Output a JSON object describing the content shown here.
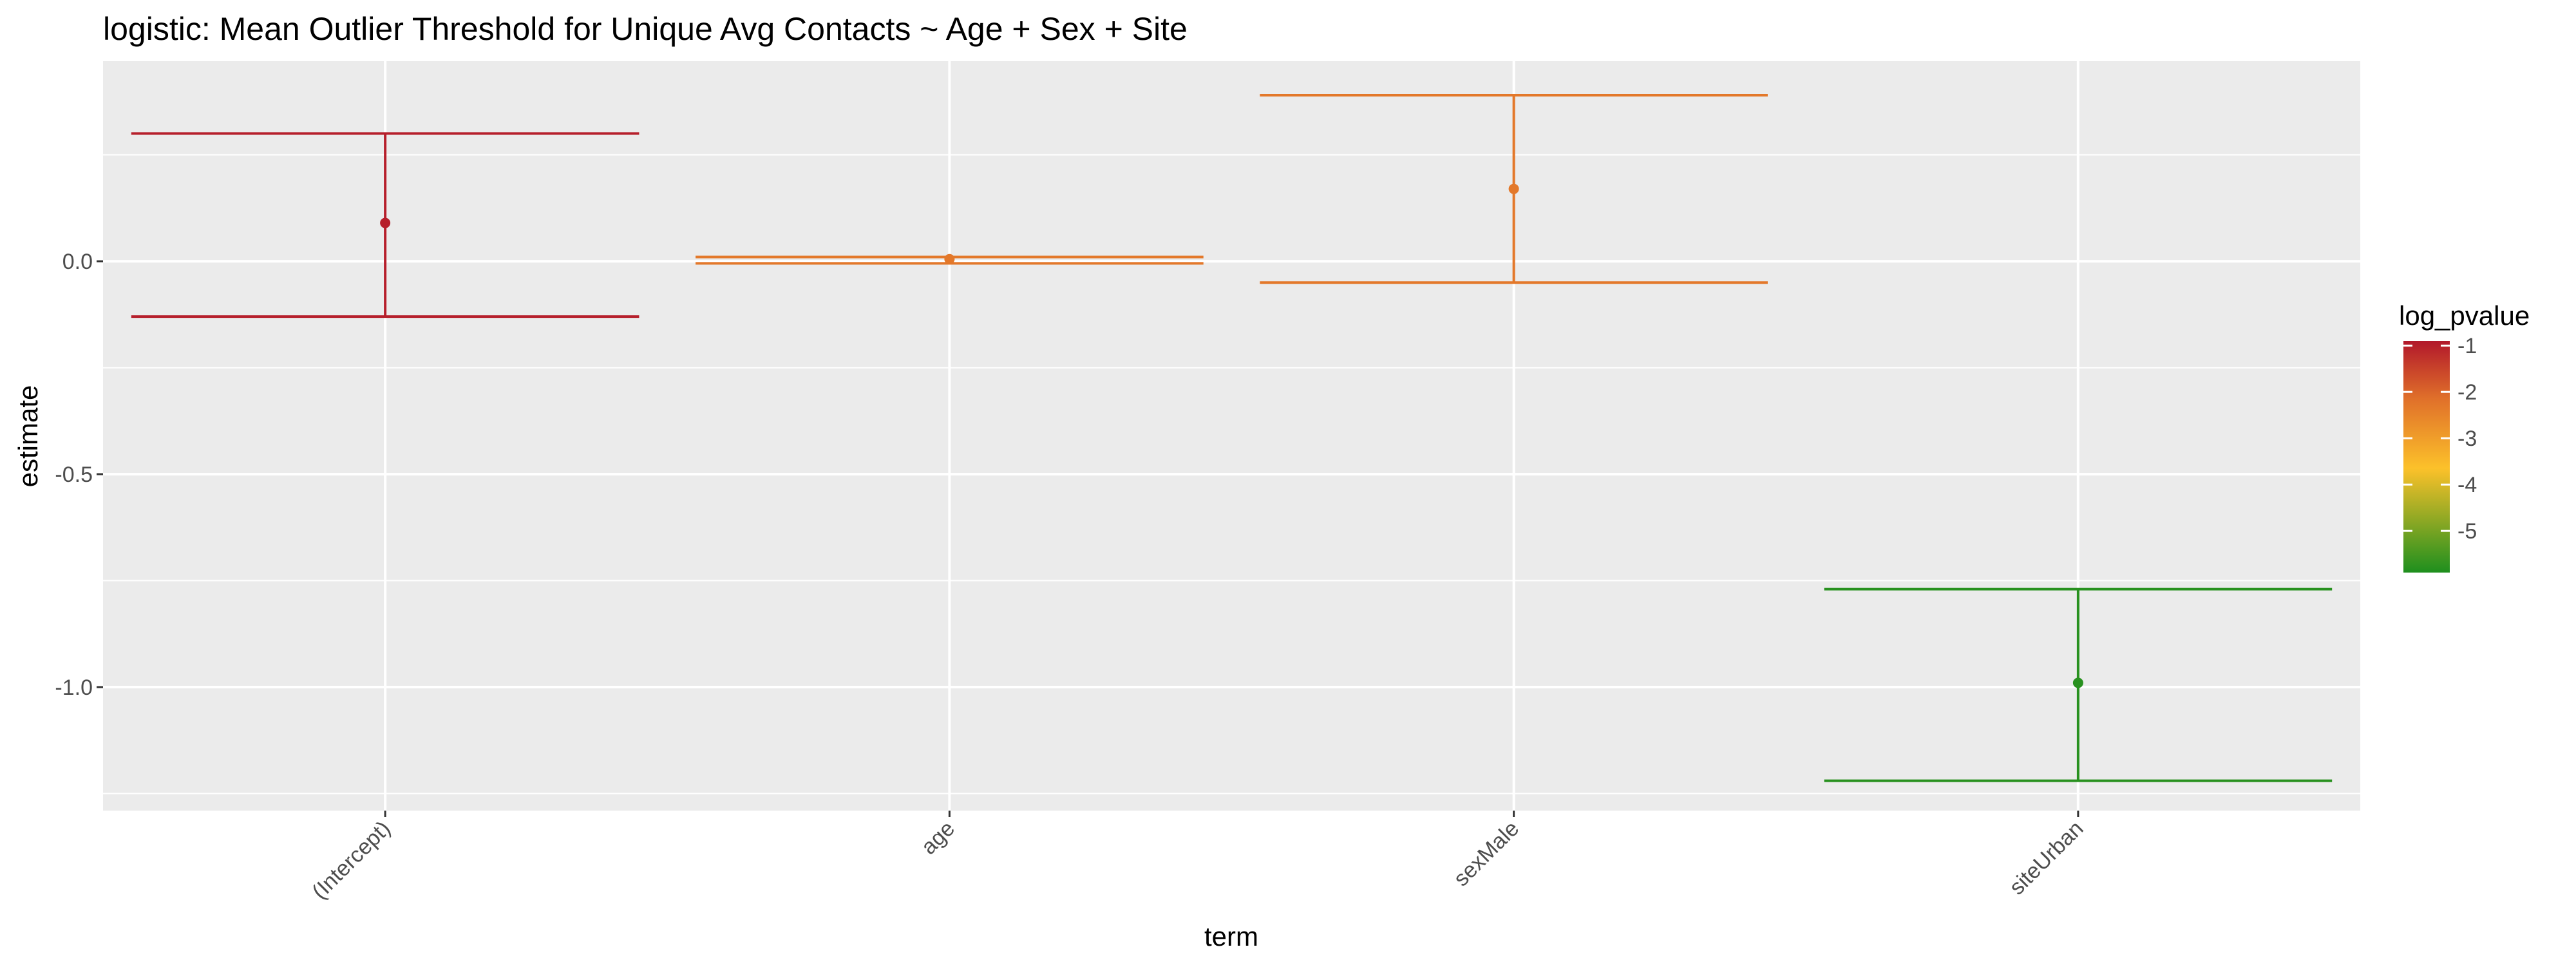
{
  "chart_data": {
    "type": "errorbar",
    "title": "logistic: Mean Outlier Threshold for Unique Avg Contacts ~ Age + Sex + Site",
    "xlabel": "term",
    "ylabel": "estimate",
    "categories": [
      "(Intercept)",
      "age",
      "sexMale",
      "siteUrban"
    ],
    "estimate": [
      0.09,
      0.005,
      0.17,
      -0.99
    ],
    "conf_low": [
      -0.13,
      -0.005,
      -0.05,
      -1.22
    ],
    "conf_high": [
      0.3,
      0.01,
      0.39,
      -0.77
    ],
    "log_pvalue": [
      -1.0,
      -2.3,
      -2.3,
      -5.8
    ],
    "ylim": [
      -1.29,
      0.47
    ],
    "yticks": [
      0.0,
      -0.5,
      -1.0
    ],
    "ytick_labels": [
      "0.0",
      "-0.5",
      "-1.0"
    ],
    "grid": true,
    "legend": {
      "title": "log_pvalue",
      "position": "right",
      "range": [
        -5.9,
        -0.9
      ],
      "ticks": [
        -1,
        -2,
        -3,
        -4,
        -5
      ],
      "tick_labels": [
        "-1",
        "-2",
        "-3",
        "-4",
        "-5"
      ],
      "colors": {
        "high": "#b2182b",
        "mid_high": "#e0702a",
        "mid": "#fcc12a",
        "low": "#1e8f1e"
      }
    }
  }
}
